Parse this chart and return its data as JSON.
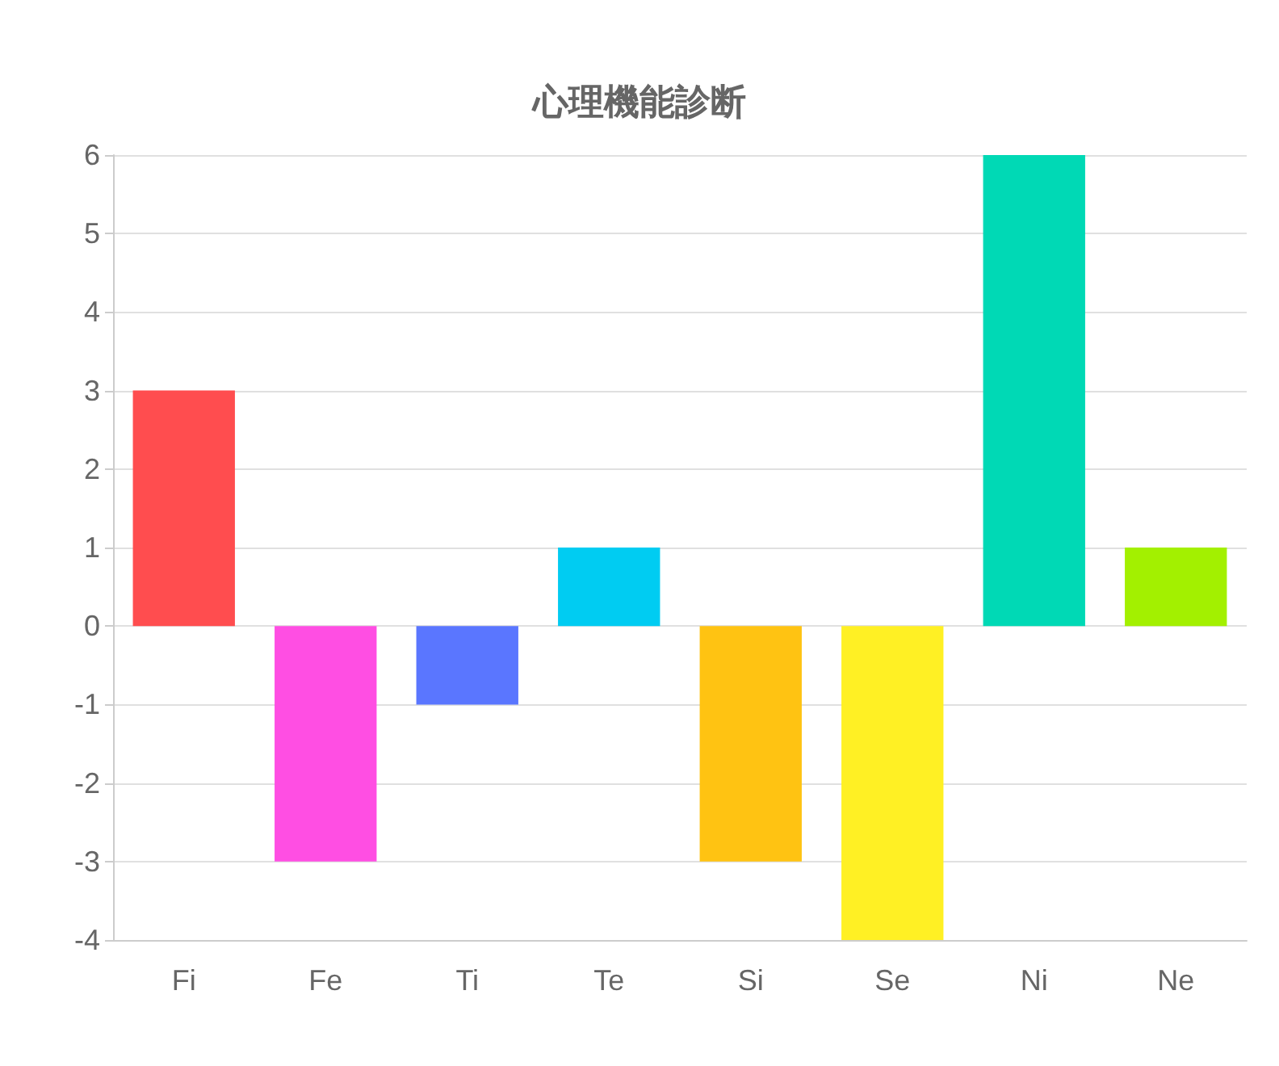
{
  "chart_data": {
    "type": "bar",
    "title": "心理機能診断",
    "categories": [
      "Fi",
      "Fe",
      "Ti",
      "Te",
      "Si",
      "Se",
      "Ni",
      "Ne"
    ],
    "values": [
      3,
      -3,
      -1,
      1,
      -3,
      -4,
      6,
      1
    ],
    "colors": [
      "#ff4d4f",
      "#ff4ee3",
      "#5a76ff",
      "#00ccf2",
      "#ffc312",
      "#fff024",
      "#00d9b5",
      "#a3f000"
    ],
    "ylim": [
      -4,
      6
    ],
    "yticks": [
      -4,
      -3,
      -2,
      -1,
      0,
      1,
      2,
      3,
      4,
      5,
      6
    ],
    "grid": "y"
  }
}
